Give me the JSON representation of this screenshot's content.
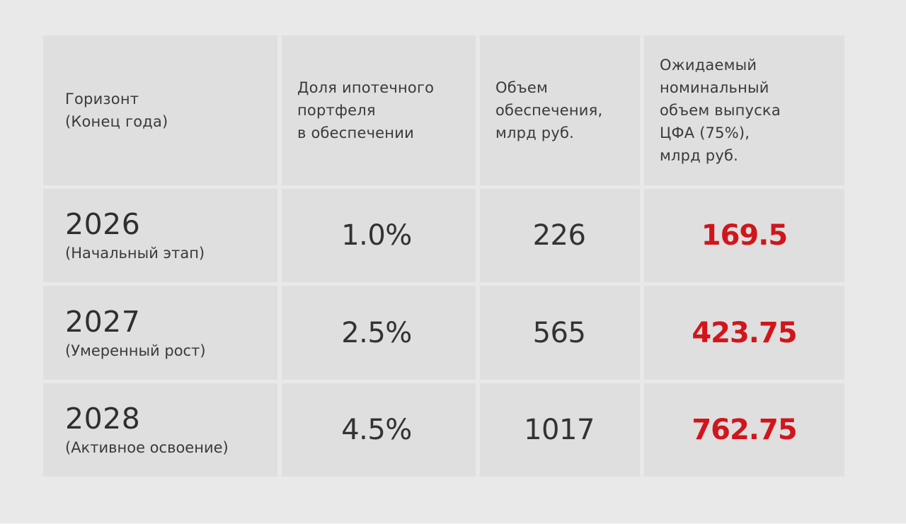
{
  "table": {
    "header": {
      "col1": [
        "Горизонт",
        "(Конец года)"
      ],
      "col2": [
        "Доля ипотечного",
        "портфеля",
        "в обеспечении"
      ],
      "col3": [
        "Объем",
        "обеспечения,",
        "млрд руб."
      ],
      "col4": [
        "Ожидаемый",
        "номинальный",
        "объем выпуска",
        "ЦФА (75%),",
        "млрд руб."
      ]
    },
    "rows": [
      {
        "year": "2026",
        "stage": "(Начальный этап)",
        "share": "1.0%",
        "collateral": "226",
        "expected": "169.5"
      },
      {
        "year": "2027",
        "stage": "(Умеренный рост)",
        "share": "2.5%",
        "collateral": "565",
        "expected": "423.75"
      },
      {
        "year": "2028",
        "stage": "(Активное освоение)",
        "share": "4.5%",
        "collateral": "1017",
        "expected": "762.75"
      }
    ]
  },
  "colors": {
    "page_background": "#e9e9e9",
    "cell_background": "#dfdfdf",
    "text": "#353535",
    "accent_red": "#d0161c"
  },
  "chart_data": {
    "type": "table",
    "title": "",
    "columns": [
      "Горизонт (Конец года)",
      "Доля ипотечного портфеля в обеспечении",
      "Объем обеспечения, млрд руб.",
      "Ожидаемый номинальный объем выпуска ЦФА (75%), млрд руб."
    ],
    "rows": [
      [
        "2026 (Начальный этап)",
        "1.0%",
        226,
        169.5
      ],
      [
        "2027 (Умеренный рост)",
        "2.5%",
        565,
        423.75
      ],
      [
        "2028 (Активное освоение)",
        "4.5%",
        1017,
        762.75
      ]
    ]
  }
}
